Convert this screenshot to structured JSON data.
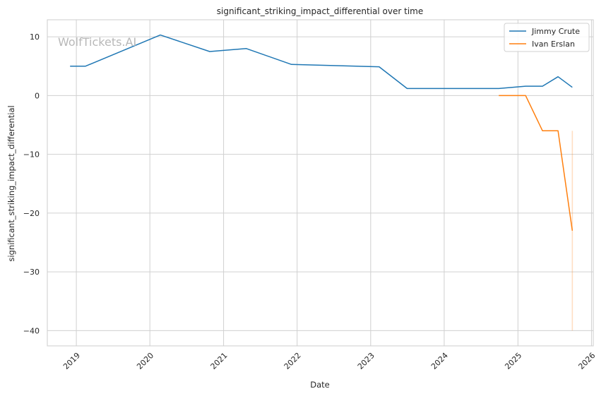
{
  "chart_data": {
    "type": "line",
    "title": "significant_striking_impact_differential over time",
    "xlabel": "Date",
    "ylabel": "significant_striking_impact_differential",
    "watermark": "WolfTickets.AI",
    "x_ticks": [
      "2019",
      "2020",
      "2021",
      "2022",
      "2023",
      "2024",
      "2025",
      "2026"
    ],
    "y_ticks": [
      10,
      0,
      -10,
      -20,
      -30,
      -40
    ],
    "xlim": [
      "2018-08-10",
      "2026-01-10"
    ],
    "ylim": [
      -42.6,
      12.9
    ],
    "grid": true,
    "legend_position": "top-right",
    "series": [
      {
        "name": "Jimmy Crute",
        "color": "#1f77b4",
        "points": [
          [
            "2018-12-01",
            5.0
          ],
          [
            "2019-02-15",
            5.0
          ],
          [
            "2020-02-22",
            10.3
          ],
          [
            "2020-10-24",
            7.5
          ],
          [
            "2021-04-24",
            8.0
          ],
          [
            "2021-12-04",
            5.3
          ],
          [
            "2023-02-12",
            4.9
          ],
          [
            "2023-07-01",
            1.2
          ],
          [
            "2024-09-28",
            1.2
          ],
          [
            "2025-02-08",
            1.6
          ],
          [
            "2025-05-03",
            1.6
          ],
          [
            "2025-07-19",
            3.2
          ],
          [
            "2025-09-28",
            1.4
          ]
        ]
      },
      {
        "name": "Ivan Erslan",
        "color": "#ff7f0e",
        "points": [
          [
            "2024-09-28",
            0.0
          ],
          [
            "2025-02-08",
            0.0
          ],
          [
            "2025-05-03",
            -6.0
          ],
          [
            "2025-07-19",
            -6.0
          ],
          [
            "2025-09-28",
            -23.0
          ]
        ]
      }
    ],
    "error_band": {
      "series": "Ivan Erslan",
      "x": "2025-09-28",
      "y_range": [
        -40.0,
        -6.0
      ]
    }
  }
}
